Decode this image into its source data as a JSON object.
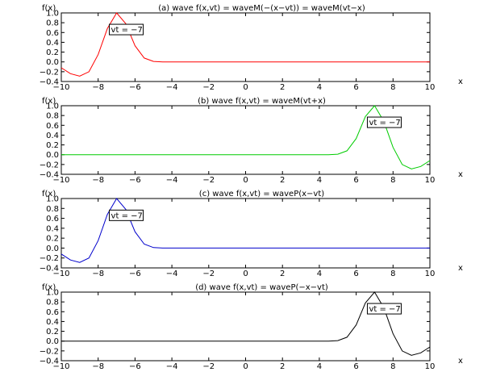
{
  "chart_data": [
    {
      "type": "line",
      "title": "(a) wave f(x,vt) = waveM(−(x−vt)) = waveM(vt−x)",
      "xlabel": "x",
      "ylabel": "f(x)",
      "xlim": [
        -10,
        10
      ],
      "ylim": [
        -0.4,
        1.0
      ],
      "xticks": [
        -10,
        -8,
        -6,
        -4,
        -2,
        0,
        2,
        4,
        6,
        8,
        10
      ],
      "yticks": [
        -0.4,
        -0.2,
        0.0,
        0.2,
        0.4,
        0.6,
        0.8,
        1.0
      ],
      "xtick_labels": [
        "−10",
        "−8",
        "−6",
        "−4",
        "−2",
        "0",
        "2",
        "4",
        "6",
        "8",
        "10"
      ],
      "ytick_labels": [
        "−0.4",
        "−0.2",
        "0.0",
        "0.2",
        "0.4",
        "0.6",
        "0.8",
        "1.0"
      ],
      "annotation": "vt = −7",
      "annotation_at": [
        -7.0,
        0.62
      ],
      "series": [
        {
          "color": "#ff0000",
          "x": [
            -10,
            -9.5,
            -9,
            -8.5,
            -8,
            -7.5,
            -7,
            -6.5,
            -6,
            -5.5,
            -5,
            -4.5,
            -4,
            -3,
            -2,
            0,
            2,
            4,
            6,
            8,
            10
          ],
          "y": [
            -0.12,
            -0.24,
            -0.29,
            -0.2,
            0.15,
            0.68,
            1.0,
            0.78,
            0.33,
            0.08,
            0.01,
            0.0,
            0.0,
            0.0,
            0.0,
            0.0,
            0.0,
            0.0,
            0.0,
            0.0,
            0.0
          ]
        }
      ]
    },
    {
      "type": "line",
      "title": "(b) wave f(x,vt) = waveM(vt+x)",
      "xlabel": "x",
      "ylabel": "f(x)",
      "xlim": [
        -10,
        10
      ],
      "ylim": [
        -0.4,
        1.0
      ],
      "xticks": [
        -10,
        -8,
        -6,
        -4,
        -2,
        0,
        2,
        4,
        6,
        8,
        10
      ],
      "yticks": [
        -0.4,
        -0.2,
        0.0,
        0.2,
        0.4,
        0.6,
        0.8,
        1.0
      ],
      "xtick_labels": [
        "−10",
        "−8",
        "−6",
        "−4",
        "−2",
        "0",
        "2",
        "4",
        "6",
        "8",
        "10"
      ],
      "ytick_labels": [
        "−0.4",
        "−0.2",
        "0.0",
        "0.2",
        "0.4",
        "0.6",
        "0.8",
        "1.0"
      ],
      "annotation": "vt = −7",
      "annotation_at": [
        7.0,
        0.62
      ],
      "series": [
        {
          "color": "#00cc00",
          "x": [
            -10,
            -8,
            -6,
            -4,
            -2,
            0,
            2,
            4,
            4.5,
            5,
            5.5,
            6,
            6.5,
            7,
            7.5,
            8,
            8.5,
            9,
            9.5,
            10
          ],
          "y": [
            0.0,
            0.0,
            0.0,
            0.0,
            0.0,
            0.0,
            0.0,
            0.0,
            0.0,
            0.01,
            0.08,
            0.33,
            0.78,
            1.0,
            0.68,
            0.15,
            -0.2,
            -0.29,
            -0.24,
            -0.12
          ]
        }
      ]
    },
    {
      "type": "line",
      "title": "(c) wave f(x,vt) = waveP(x−vt)",
      "xlabel": "x",
      "ylabel": "f(x)",
      "xlim": [
        -10,
        10
      ],
      "ylim": [
        -0.4,
        1.0
      ],
      "xticks": [
        -10,
        -8,
        -6,
        -4,
        -2,
        0,
        2,
        4,
        6,
        8,
        10
      ],
      "yticks": [
        -0.4,
        -0.2,
        0.0,
        0.2,
        0.4,
        0.6,
        0.8,
        1.0
      ],
      "xtick_labels": [
        "−10",
        "−8",
        "−6",
        "−4",
        "−2",
        "0",
        "2",
        "4",
        "6",
        "8",
        "10"
      ],
      "ytick_labels": [
        "−0.4",
        "−0.2",
        "0.0",
        "0.2",
        "0.4",
        "0.6",
        "0.8",
        "1.0"
      ],
      "annotation": "vt = −7",
      "annotation_at": [
        -7.0,
        0.62
      ],
      "series": [
        {
          "color": "#0000cc",
          "x": [
            -10,
            -9.5,
            -9,
            -8.5,
            -8,
            -7.5,
            -7,
            -6.5,
            -6,
            -5.5,
            -5,
            -4.5,
            -4,
            -3,
            -2,
            0,
            2,
            4,
            6,
            8,
            10
          ],
          "y": [
            -0.12,
            -0.24,
            -0.29,
            -0.2,
            0.15,
            0.68,
            1.0,
            0.78,
            0.33,
            0.08,
            0.01,
            0.0,
            0.0,
            0.0,
            0.0,
            0.0,
            0.0,
            0.0,
            0.0,
            0.0,
            0.0
          ]
        }
      ]
    },
    {
      "type": "line",
      "title": "(d) wave f(x,vt) = waveP(−x−vt)",
      "xlabel": "x",
      "ylabel": "f(x)",
      "xlim": [
        -10,
        10
      ],
      "ylim": [
        -0.4,
        1.0
      ],
      "xticks": [
        -10,
        -8,
        -6,
        -4,
        -2,
        0,
        2,
        4,
        6,
        8,
        10
      ],
      "yticks": [
        -0.4,
        -0.2,
        0.0,
        0.2,
        0.4,
        0.6,
        0.8,
        1.0
      ],
      "xtick_labels": [
        "−10",
        "−8",
        "−6",
        "−4",
        "−2",
        "0",
        "2",
        "4",
        "6",
        "8",
        "10"
      ],
      "ytick_labels": [
        "−0.4",
        "−0.2",
        "0.0",
        "0.2",
        "0.4",
        "0.6",
        "0.8",
        "1.0"
      ],
      "annotation": "vt = −7",
      "annotation_at": [
        7.0,
        0.62
      ],
      "series": [
        {
          "color": "#000000",
          "x": [
            -10,
            -8,
            -6,
            -4,
            -2,
            0,
            2,
            4,
            4.5,
            5,
            5.5,
            6,
            6.5,
            7,
            7.5,
            8,
            8.5,
            9,
            9.5,
            10
          ],
          "y": [
            0.0,
            0.0,
            0.0,
            0.0,
            0.0,
            0.0,
            0.0,
            0.0,
            0.0,
            0.01,
            0.08,
            0.33,
            0.78,
            1.0,
            0.68,
            0.15,
            -0.2,
            -0.29,
            -0.24,
            -0.12
          ]
        }
      ]
    }
  ]
}
